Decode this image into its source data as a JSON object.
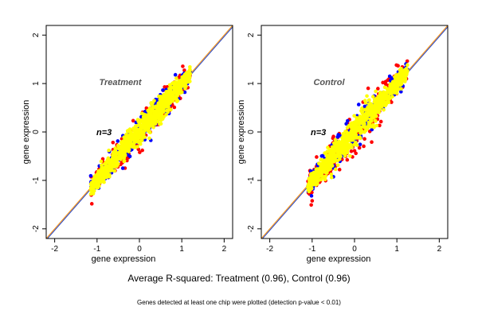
{
  "chart_data": [
    {
      "type": "scatter",
      "title": "Treatment",
      "n_label": "n=3",
      "xlabel": "gene expression",
      "ylabel": "gene expression",
      "xlim": [
        -2.2,
        2.2
      ],
      "ylim": [
        -2.2,
        2.2
      ],
      "xticks": [
        -2,
        -1,
        0,
        1,
        2
      ],
      "yticks": [
        -2,
        -1,
        0,
        1,
        2
      ],
      "reference_lines": [
        {
          "color": "#ff8c00",
          "slope": 1,
          "intercept": 0
        },
        {
          "color": "#1f3fbf",
          "slope": 1,
          "intercept": -0.03
        }
      ],
      "cloud": {
        "x_range": [
          -1.15,
          1.2
        ],
        "spread": 0.13
      },
      "series": [
        {
          "color": "#ff0000",
          "label": "",
          "spread_scale": 1.35
        },
        {
          "color": "#0000ff",
          "label": "",
          "spread_scale": 1.2
        },
        {
          "color": "#ffff00",
          "label": "",
          "spread_scale": 1.0
        }
      ]
    },
    {
      "type": "scatter",
      "title": "Control",
      "n_label": "n=3",
      "xlabel": "gene expression",
      "ylabel": "gene expression",
      "xlim": [
        -2.2,
        2.2
      ],
      "ylim": [
        -2.2,
        2.2
      ],
      "xticks": [
        -2,
        -1,
        0,
        1,
        2
      ],
      "yticks": [
        -2,
        -1,
        0,
        1,
        2
      ],
      "reference_lines": [
        {
          "color": "#ff8c00",
          "slope": 1,
          "intercept": 0
        },
        {
          "color": "#1f3fbf",
          "slope": 1,
          "intercept": -0.03
        }
      ],
      "cloud": {
        "x_range": [
          -1.1,
          1.25
        ],
        "spread": 0.13
      },
      "series": [
        {
          "color": "#ff0000",
          "label": "",
          "spread_scale": 1.7
        },
        {
          "color": "#0000ff",
          "label": "",
          "spread_scale": 1.45
        },
        {
          "color": "#ffff00",
          "label": "",
          "spread_scale": 1.0
        }
      ]
    }
  ],
  "caption": {
    "main": "Average R-squared: Treatment (0.96), Control (0.96)",
    "sub": "Genes detected at least one chip were plotted (detection p-value < 0.01)"
  }
}
